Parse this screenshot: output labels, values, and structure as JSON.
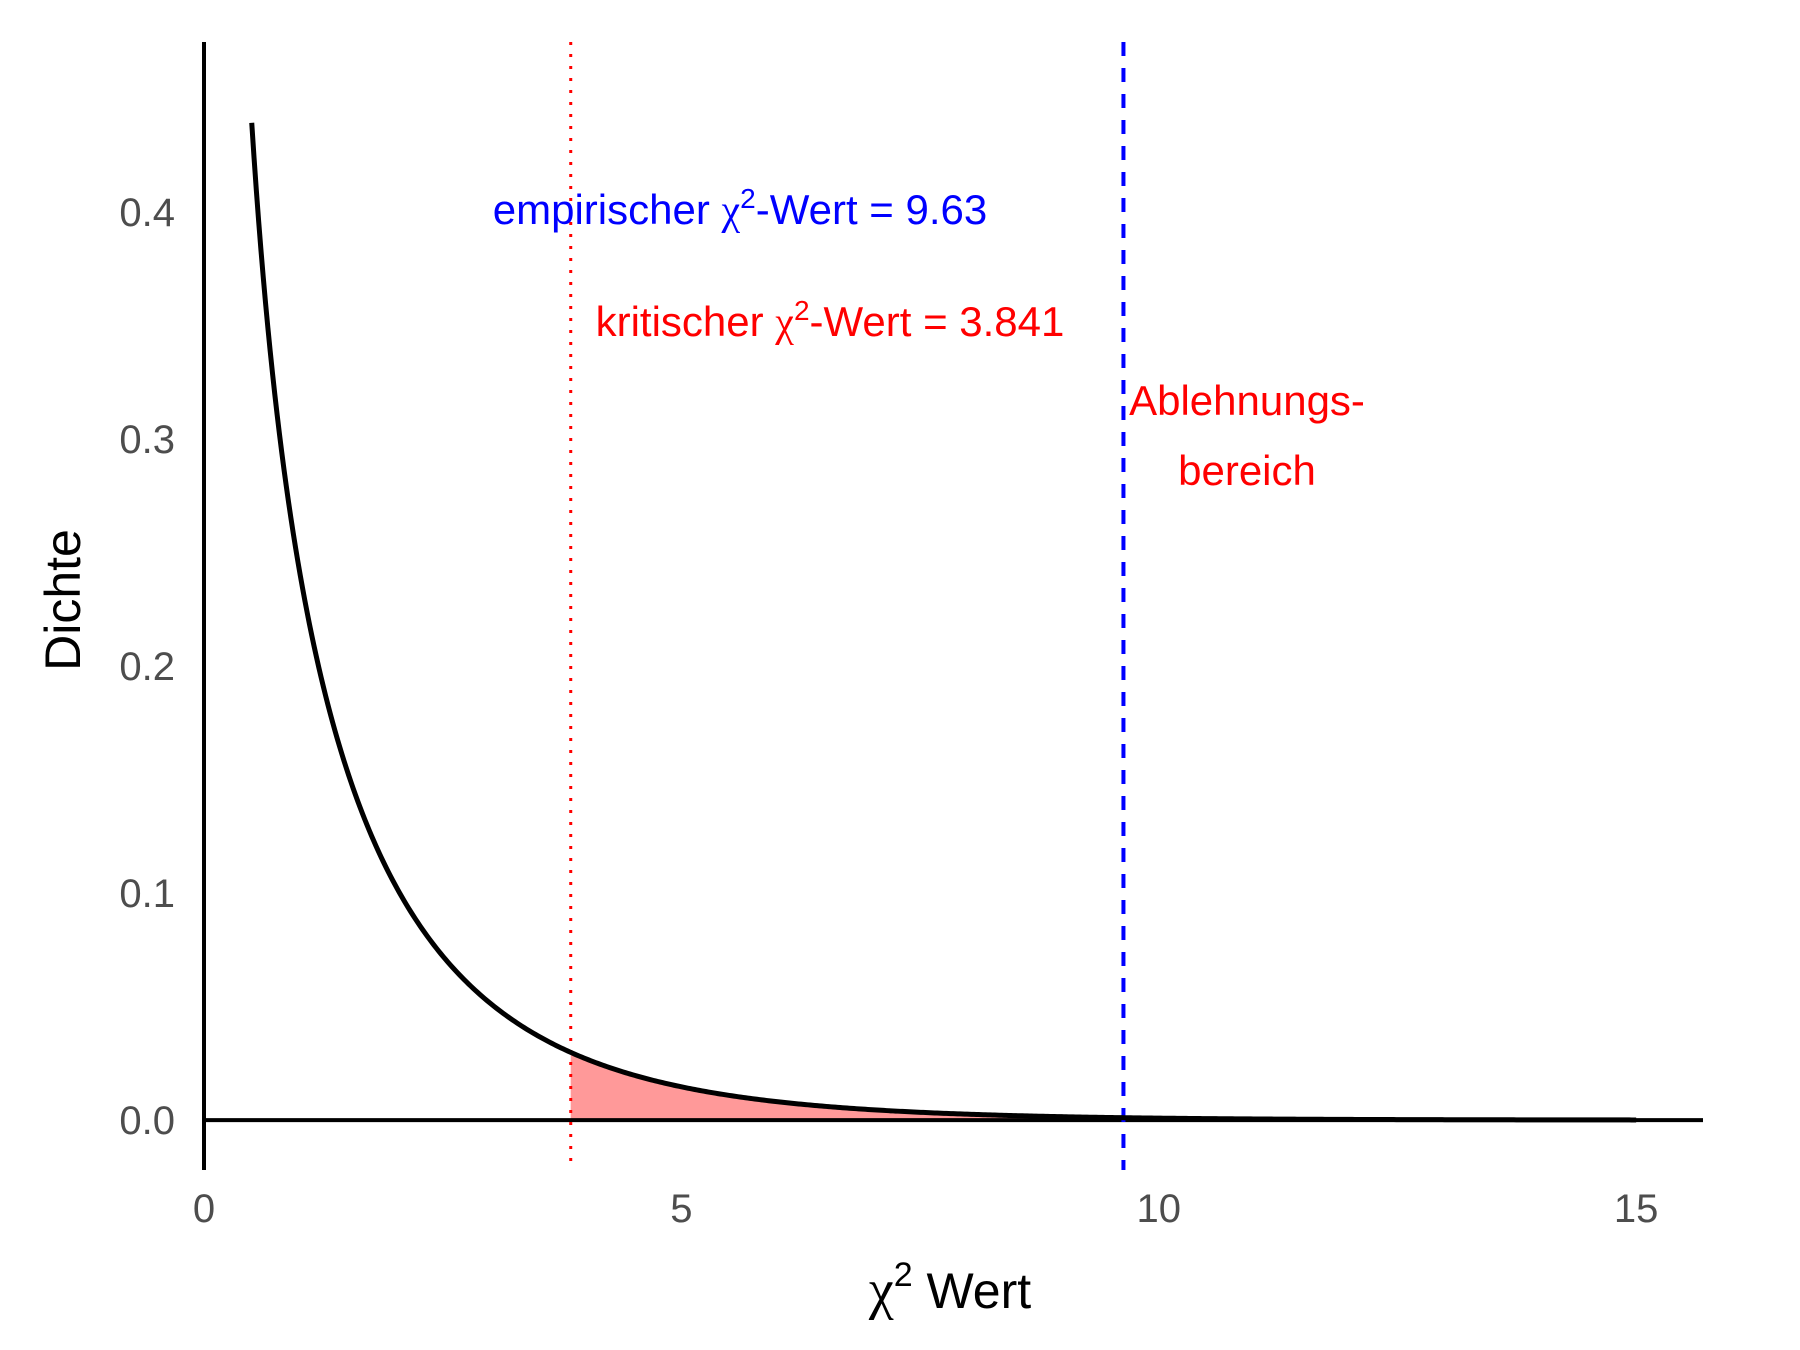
{
  "chart_data": {
    "type": "line",
    "distribution": "chi-squared",
    "df": 1,
    "xlabel": {
      "symbol": "χ",
      "superscript": "2",
      "text": " Wert"
    },
    "ylabel": "Dichte",
    "xlim": [
      0,
      15.7
    ],
    "ylim": [
      -0.022,
      0.475
    ],
    "x_range_curve": [
      0.5,
      15
    ],
    "xticks": [
      0,
      5,
      10,
      15
    ],
    "xtick_labels": [
      "0",
      "5",
      "10",
      "15"
    ],
    "yticks": [
      0,
      0.1,
      0.2,
      0.3,
      0.4
    ],
    "ytick_labels": [
      "0.0",
      "0.1",
      "0.2",
      "0.3",
      "0.4"
    ],
    "grid": false,
    "critical_value": 3.841,
    "empirical_value": 9.63,
    "colors": {
      "curve": "#000000",
      "critical_line": "#ff0000",
      "empirical_line": "#0000ff",
      "rejection_fill": "#ff9999",
      "tick_text": "#4d4d4d"
    },
    "annotations": {
      "empirical": {
        "prefix": "empirischer ",
        "symbol": "χ",
        "superscript": "2",
        "suffix": "-Wert = 9.63"
      },
      "critical": {
        "prefix": "kritischer ",
        "symbol": "χ",
        "superscript": "2",
        "suffix": "-Wert = 3.841"
      },
      "rejection_region": {
        "line1": "Ablehnungs-",
        "line2": "bereich"
      }
    }
  }
}
